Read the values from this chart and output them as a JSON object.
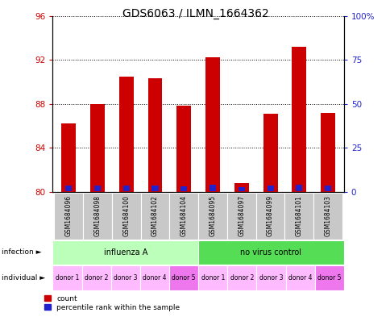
{
  "title": "GDS6063 / ILMN_1664362",
  "samples": [
    "GSM1684096",
    "GSM1684098",
    "GSM1684100",
    "GSM1684102",
    "GSM1684104",
    "GSM1684095",
    "GSM1684097",
    "GSM1684099",
    "GSM1684101",
    "GSM1684103"
  ],
  "count_values": [
    86.2,
    88.0,
    90.5,
    90.3,
    87.8,
    92.2,
    80.8,
    87.1,
    93.2,
    87.2
  ],
  "blue_bar_heights": [
    0.5,
    0.55,
    0.5,
    0.5,
    0.48,
    0.6,
    0.35,
    0.52,
    0.6,
    0.5
  ],
  "ymin": 80,
  "ymax": 96,
  "yticks": [
    80,
    84,
    88,
    92,
    96
  ],
  "right_yticklabels": [
    "0",
    "25",
    "50",
    "75",
    "100%"
  ],
  "infection_groups": [
    {
      "label": "influenza A",
      "start": 0,
      "end": 5,
      "color": "#bbffbb"
    },
    {
      "label": "no virus control",
      "start": 5,
      "end": 10,
      "color": "#55dd55"
    }
  ],
  "individual_labels": [
    "donor 1",
    "donor 2",
    "donor 3",
    "donor 4",
    "donor 5",
    "donor 1",
    "donor 2",
    "donor 3",
    "donor 4",
    "donor 5"
  ],
  "individual_colors": [
    "#ffbbff",
    "#ffbbff",
    "#ffbbff",
    "#ffbbff",
    "#ee77ee",
    "#ffbbff",
    "#ffbbff",
    "#ffbbff",
    "#ffbbff",
    "#ee77ee"
  ],
  "bar_color_red": "#cc0000",
  "bar_color_blue": "#2222cc",
  "bar_width": 0.5,
  "title_fontsize": 10,
  "tick_fontsize": 7.5,
  "infection_label": "infection",
  "individual_label": "individual",
  "legend_count_label": "count",
  "legend_percentile_label": "percentile rank within the sample",
  "background_color": "#ffffff",
  "left_tick_color": "#cc0000",
  "right_tick_color": "#2222cc"
}
